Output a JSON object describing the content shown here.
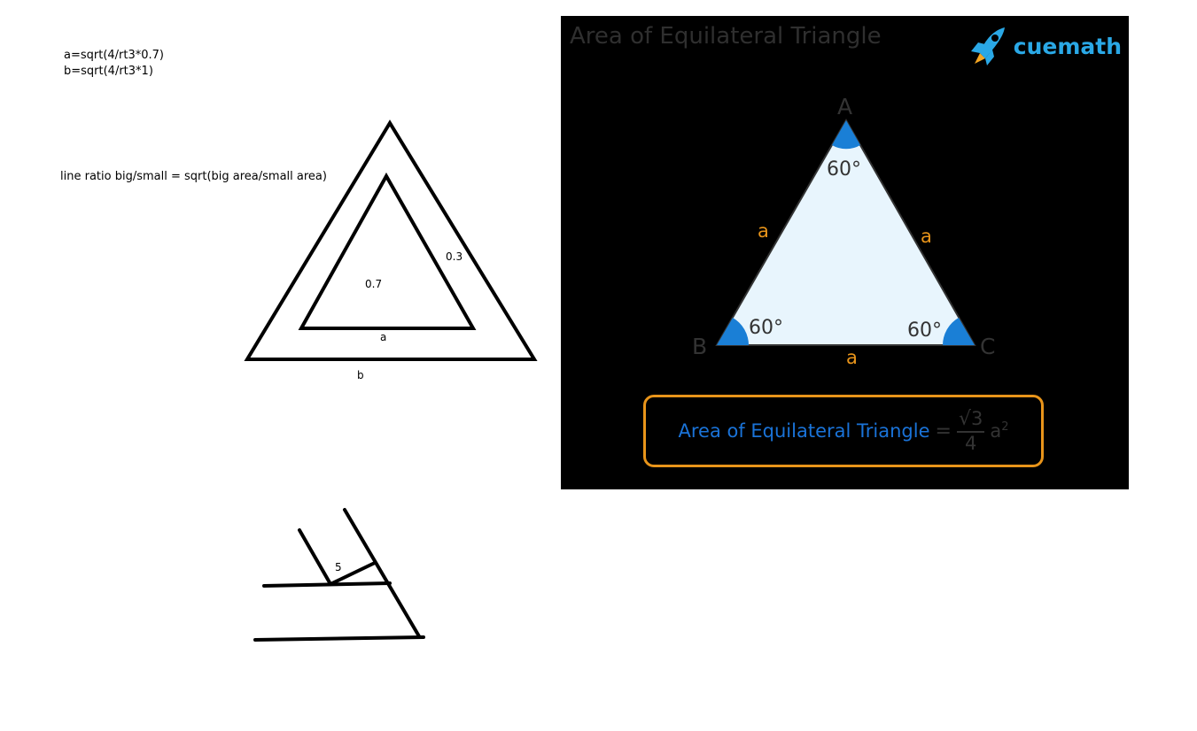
{
  "notes": {
    "line1": "a=sqrt(4/rt3*0.7)",
    "line2": "b=sqrt(4/rt3*1)",
    "ratio": "line ratio big/small = sqrt(big area/small area)"
  },
  "sketch": {
    "inner_area_label": "0.7",
    "band_label": "0.3",
    "inner_side_label": "a",
    "outer_side_label": "b",
    "lower_label": "5"
  },
  "reference": {
    "title": "Area of Equilateral Triangle",
    "brand": "cuemath",
    "vertices": {
      "A": "A",
      "B": "B",
      "C": "C"
    },
    "side_label": "a",
    "angle_label": "60°",
    "formula": {
      "label": "Area of Equilateral Triangle",
      "equals": "=",
      "numerator": "3",
      "radical": "√",
      "denominator": "4",
      "variable": "a",
      "exponent": "2"
    },
    "colors": {
      "background": "#000000",
      "triangle_fill": "#e8f5fd",
      "angle_fill": "#1a7fd6",
      "side_label": "#e8941a",
      "box_border": "#e8941a",
      "brand": "#2aa8e6"
    }
  }
}
